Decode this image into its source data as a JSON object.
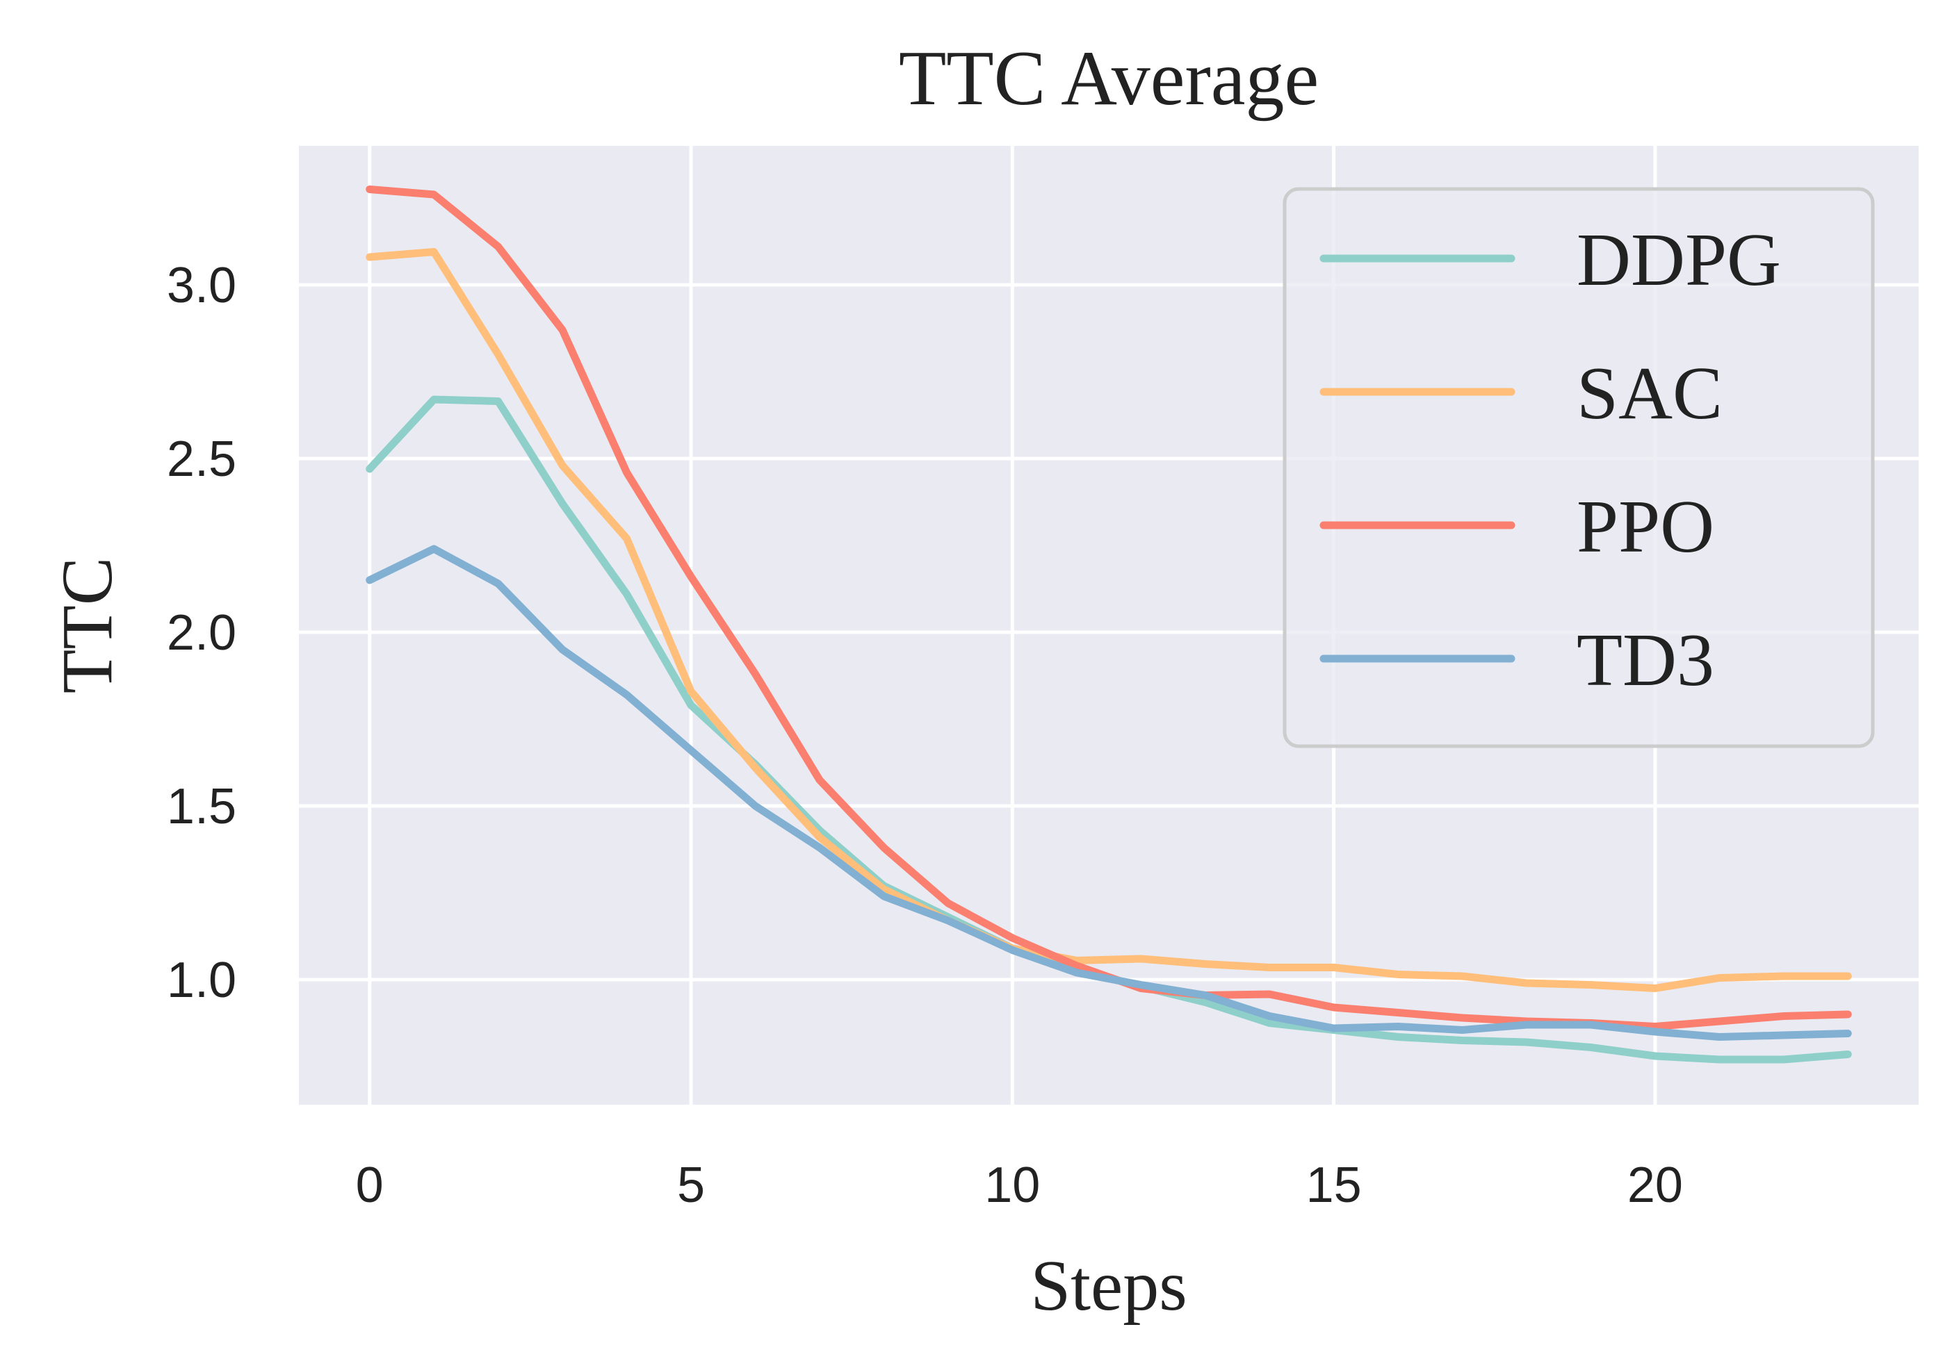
{
  "chart_data": {
    "type": "line",
    "title": "TTC Average",
    "xlabel": "Steps",
    "ylabel": "TTC",
    "xlim": [
      -1.1,
      24.1
    ],
    "ylim": [
      0.64,
      3.4
    ],
    "xticks": [
      0,
      5,
      10,
      15,
      20
    ],
    "yticks": [
      1.0,
      1.5,
      2.0,
      2.5,
      3.0
    ],
    "xtick_labels": [
      "0",
      "5",
      "10",
      "15",
      "20"
    ],
    "ytick_labels": [
      "1.0",
      "1.5",
      "2.0",
      "2.5",
      "3.0"
    ],
    "grid": true,
    "legend_position": "top-right",
    "x": [
      0,
      1,
      2,
      3,
      4,
      5,
      6,
      7,
      8,
      9,
      10,
      11,
      12,
      13,
      14,
      15,
      16,
      17,
      18,
      19,
      20,
      21,
      22,
      23
    ],
    "series": [
      {
        "name": "DDPG",
        "color": "#8ecfc9",
        "values": [
          2.47,
          2.67,
          2.665,
          2.37,
          2.11,
          1.79,
          1.62,
          1.43,
          1.27,
          1.18,
          1.09,
          1.03,
          0.98,
          0.935,
          0.875,
          0.855,
          0.835,
          0.825,
          0.82,
          0.805,
          0.78,
          0.77,
          0.77,
          0.785
        ]
      },
      {
        "name": "SAC",
        "color": "#ffbe7a",
        "values": [
          3.08,
          3.095,
          2.8,
          2.48,
          2.27,
          1.83,
          1.61,
          1.41,
          1.26,
          1.17,
          1.09,
          1.055,
          1.06,
          1.045,
          1.035,
          1.035,
          1.015,
          1.01,
          0.99,
          0.985,
          0.975,
          1.005,
          1.01,
          1.01
        ]
      },
      {
        "name": "PPO",
        "color": "#fa7f6f",
        "values": [
          3.275,
          3.26,
          3.11,
          2.87,
          2.46,
          2.16,
          1.88,
          1.575,
          1.38,
          1.22,
          1.12,
          1.04,
          0.975,
          0.955,
          0.958,
          0.92,
          0.905,
          0.89,
          0.88,
          0.875,
          0.865,
          0.88,
          0.895,
          0.9
        ]
      },
      {
        "name": "TD3",
        "color": "#82b0d2",
        "values": [
          2.15,
          2.24,
          2.14,
          1.95,
          1.82,
          1.66,
          1.5,
          1.38,
          1.24,
          1.17,
          1.085,
          1.02,
          0.985,
          0.955,
          0.895,
          0.86,
          0.865,
          0.855,
          0.87,
          0.87,
          0.85,
          0.835,
          0.84,
          0.845
        ]
      }
    ]
  }
}
